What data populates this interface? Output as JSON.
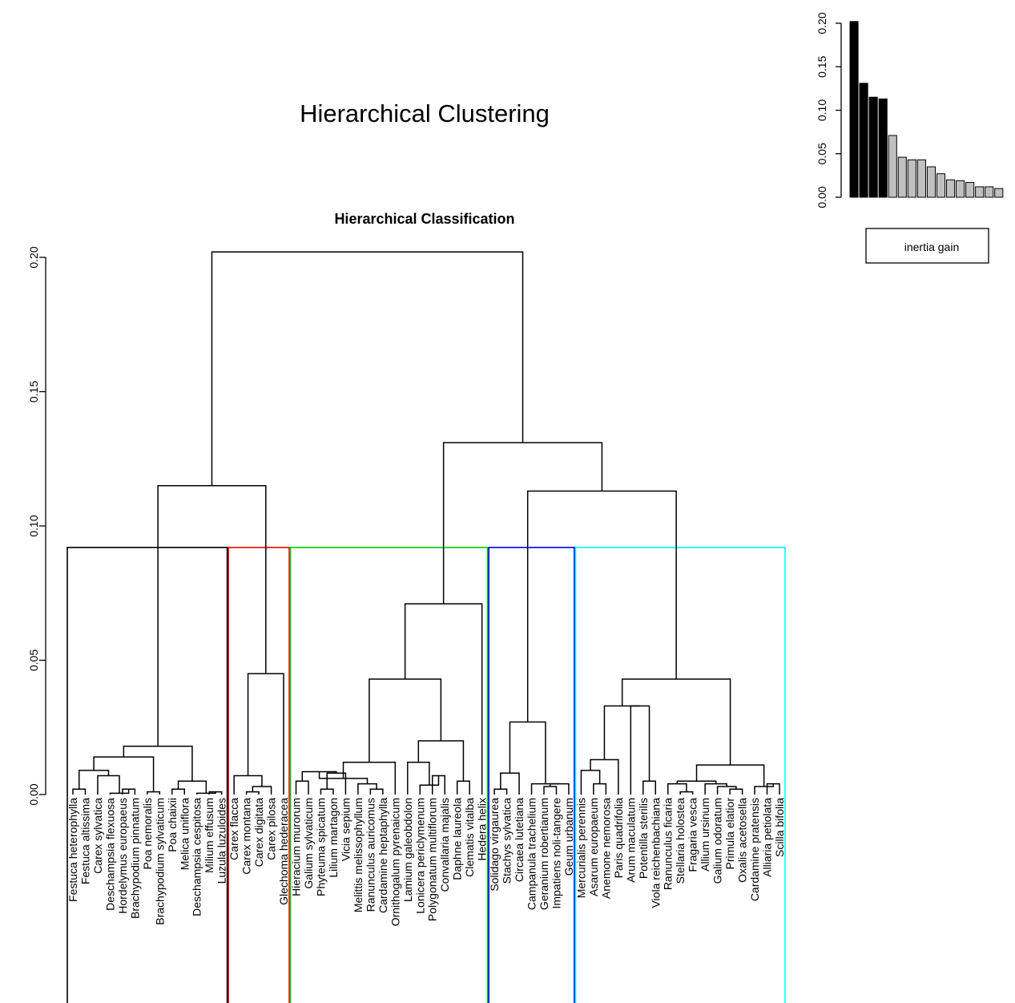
{
  "page_title": "Hierarchical Clustering",
  "chart_data": [
    {
      "type": "dendrogram",
      "title": "Hierarchical Classification",
      "ylim": [
        0,
        0.21
      ],
      "yticks": [
        "0.00",
        "0.05",
        "0.10",
        "0.15",
        "0.20"
      ],
      "leaves": [
        "Festuca heterophylla",
        "Festuca altissima",
        "Carex sylvatica",
        "Deschampsia flexuosa",
        "Hordelymus europaeus",
        "Brachypodium pinnatum",
        "Poa nemoralis",
        "Brachypodium sylvaticum",
        "Poa chaixii",
        "Melica uniflora",
        "Deschampsia cespitosa",
        "Milium effusum",
        "Luzula luzuloides",
        "Carex flacca",
        "Carex montana",
        "Carex digitata",
        "Carex pilosa",
        "Glechoma hederacea",
        "Hieracium murorum",
        "Galium sylvaticum",
        "Phyteuma spicatum",
        "Lilium martagon",
        "Vicia sepium",
        "Melittis melissophyllum",
        "Ranunculus auricomus",
        "Cardamine heptaphylla",
        "Ornithogalum pyrenaicum",
        "Lamium galeobdolon",
        "Lonicera periclymenum",
        "Polygonatum multiflorum",
        "Convallaria majalis",
        "Daphne laureola",
        "Clematis vitalba",
        "Hedera helix",
        "Solidago virgaurea",
        "Stachys sylvatica",
        "Circaea lutetiana",
        "Campanula trachelium",
        "Geranium robertianum",
        "Impatiens noli-tangere",
        "Geum urbanum",
        "Mercurialis perennis",
        "Asarum europaeum",
        "Anemone nemorosa",
        "Paris quadrifolia",
        "Arum maculatum",
        "Potentilla sterilis",
        "Viola reichenbachiana",
        "Ranunculus ficaria",
        "Stellaria holostea",
        "Fragaria vesca",
        "Allium ursinum",
        "Galium odoratum",
        "Primula elatior",
        "Oxalis acetosella",
        "Cardamine pratensis",
        "Alliaria petiolata",
        "Scilla bifolia"
      ],
      "merges": [
        {
          "left": "Festuca heterophylla",
          "right": "Festuca altissima",
          "height": 0.002
        },
        {
          "left": "Hordelymus europaeus",
          "right": "Brachypodium pinnatum",
          "height": 0.002
        },
        {
          "left": "Deschampsia flexuosa",
          "right": "m2",
          "height": 0.0005
        },
        {
          "left": "Carex sylvatica",
          "right": "m3",
          "height": 0.007
        },
        {
          "left": "m1",
          "right": "m4",
          "height": 0.009
        },
        {
          "left": "Poa nemoralis",
          "right": "Brachypodium sylvaticum",
          "height": 0.001
        },
        {
          "left": "m5",
          "right": "m6",
          "height": 0.014
        },
        {
          "left": "Milium effusum",
          "right": "Luzula luzuloides",
          "height": 0.001
        },
        {
          "left": "Deschampsia cespitosa",
          "right": "m8",
          "height": 0.0005
        },
        {
          "left": "Poa chaixii",
          "right": "Melica uniflora",
          "height": 0.002
        },
        {
          "left": "m10",
          "right": "m9",
          "height": 0.005
        },
        {
          "left": "m7",
          "right": "m11",
          "height": 0.018
        },
        {
          "left": "Carex montana",
          "right": "Carex digitata",
          "height": 0.001
        },
        {
          "left": "m13",
          "right": "Carex pilosa",
          "height": 0.003
        },
        {
          "left": "Carex flacca",
          "right": "m14",
          "height": 0.007
        },
        {
          "left": "m15",
          "right": "Glechoma hederacea",
          "height": 0.045
        },
        {
          "left": "m12",
          "right": "m16",
          "height": 0.115
        },
        {
          "left": "Hieracium murorum",
          "right": "Galium sylvaticum",
          "height": 0.005
        },
        {
          "left": "Phyteuma spicatum",
          "right": "Lilium martagon",
          "height": 0.002
        },
        {
          "left": "Vicia sepium",
          "right": "m19",
          "height": 0.008
        },
        {
          "left": "m18",
          "right": "m20",
          "height": 0.0085
        },
        {
          "left": "Ranunculus auricomus",
          "right": "Cardamine heptaphylla",
          "height": 0.002
        },
        {
          "left": "Melittis melissophyllum",
          "right": "m22",
          "height": 0.004
        },
        {
          "left": "m21",
          "right": "m23",
          "height": 0.006
        },
        {
          "left": "m24",
          "right": "Ornithogalum pyrenaicum",
          "height": 0.012
        },
        {
          "left": "Polygonatum multiflorum",
          "right": "Convallaria majalis",
          "height": 0.007
        },
        {
          "left": "Lonicera periclymenum",
          "right": "m26",
          "height": 0.0035
        },
        {
          "left": "Lamium galeobdolon",
          "right": "m27",
          "height": 0.012
        },
        {
          "left": "Daphne laureola",
          "right": "Clematis vitalba",
          "height": 0.005
        },
        {
          "left": "m28",
          "right": "m29",
          "height": 0.02
        },
        {
          "left": "m25",
          "right": "m30",
          "height": 0.043
        },
        {
          "left": "m31",
          "right": "Hedera helix",
          "height": 0.071
        },
        {
          "left": "Solidago virgaurea",
          "right": "Stachys sylvatica",
          "height": 0.002
        },
        {
          "left": "m33",
          "right": "Circaea lutetiana",
          "height": 0.008
        },
        {
          "left": "Geranium robertianum",
          "right": "Impatiens noli-tangere",
          "height": 0.003
        },
        {
          "left": "m35",
          "right": "Geum urbanum",
          "height": 0.004
        },
        {
          "left": "Campanula trachelium",
          "right": "m36",
          "height": 0.004
        },
        {
          "left": "m34",
          "right": "m37",
          "height": 0.027
        },
        {
          "left": "Asarum europaeum",
          "right": "Anemone nemorosa",
          "height": 0.004
        },
        {
          "left": "Mercurialis perennis",
          "right": "m39",
          "height": 0.009
        },
        {
          "left": "m40",
          "right": "Paris quadrifolia",
          "height": 0.013
        },
        {
          "left": "Potentilla sterilis",
          "right": "Viola reichenbachiana",
          "height": 0.005
        },
        {
          "left": "Arum maculatum",
          "right": "m42",
          "height": 0.033
        },
        {
          "left": "m41",
          "right": "m43",
          "height": 0.033
        },
        {
          "left": "Stellaria holostea",
          "right": "Fragaria vesca",
          "height": 0.001
        },
        {
          "left": "Ranunculus ficaria",
          "right": "m45",
          "height": 0.004
        },
        {
          "left": "Primula elatior",
          "right": "Oxalis acetosella",
          "height": 0.002
        },
        {
          "left": "Galium odoratum",
          "right": "m47",
          "height": 0.003
        },
        {
          "left": "Allium ursinum",
          "right": "m48",
          "height": 0.004
        },
        {
          "left": "m46",
          "right": "m49",
          "height": 0.005
        },
        {
          "left": "Alliaria petiolata",
          "right": "Scilla bifolia",
          "height": 0.004
        },
        {
          "left": "Cardamine pratensis",
          "right": "m51",
          "height": 0.003
        },
        {
          "left": "m50",
          "right": "m52",
          "height": 0.011
        },
        {
          "left": "m44",
          "right": "m53",
          "height": 0.043
        },
        {
          "left": "m38",
          "right": "m54",
          "height": 0.113
        },
        {
          "left": "m32",
          "right": "m55",
          "height": 0.131
        },
        {
          "left": "m17",
          "right": "m56",
          "height": 0.202
        }
      ],
      "cut_height": 0.092,
      "clusters": [
        {
          "first_leaf": "Festuca heterophylla",
          "last_leaf": "Luzula luzuloides",
          "color": "#000000"
        },
        {
          "first_leaf": "Carex flacca",
          "last_leaf": "Glechoma hederacea",
          "color": "#ff0000"
        },
        {
          "first_leaf": "Hieracium murorum",
          "last_leaf": "Hedera helix",
          "color": "#00cd00"
        },
        {
          "first_leaf": "Solidago virgaurea",
          "last_leaf": "Geum urbanum",
          "color": "#0000ff"
        },
        {
          "first_leaf": "Mercurialis perennis",
          "last_leaf": "Scilla bifolia",
          "color": "#00ffff"
        }
      ]
    },
    {
      "type": "bar",
      "title": "",
      "legend": "inertia gain",
      "yticks": [
        "0.00",
        "0.05",
        "0.10",
        "0.15",
        "0.20"
      ],
      "ylim": [
        0,
        0.2
      ],
      "values": [
        0.202,
        0.131,
        0.115,
        0.113,
        0.071,
        0.046,
        0.043,
        0.043,
        0.035,
        0.027,
        0.02,
        0.019,
        0.017,
        0.012,
        0.012,
        0.01
      ],
      "colors": [
        "#000000",
        "#000000",
        "#000000",
        "#000000",
        "#c0c0c0",
        "#c0c0c0",
        "#c0c0c0",
        "#c0c0c0",
        "#c0c0c0",
        "#c0c0c0",
        "#c0c0c0",
        "#c0c0c0",
        "#c0c0c0",
        "#c0c0c0",
        "#c0c0c0",
        "#c0c0c0"
      ]
    }
  ]
}
